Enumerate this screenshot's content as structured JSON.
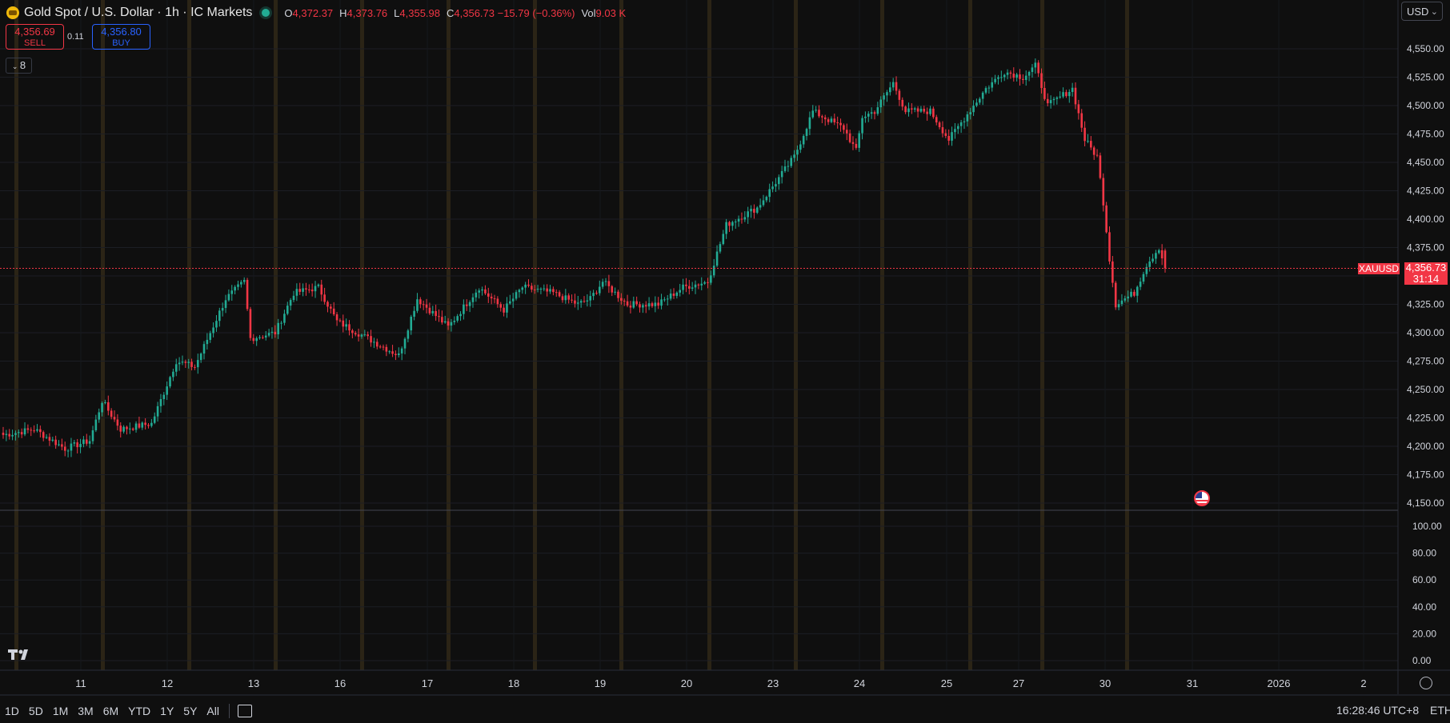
{
  "header": {
    "title": "Gold Spot / U.S. Dollar · 1h · IC Markets",
    "ohlc": [
      {
        "key": "O",
        "value": "4,372.37"
      },
      {
        "key": "H",
        "value": "4,373.76"
      },
      {
        "key": "L",
        "value": "4,355.98"
      },
      {
        "key": "C",
        "value": "4,356.73 −15.79 (−0.36%)"
      },
      {
        "key": "Vol",
        "value": "9.03 K"
      }
    ]
  },
  "trade": {
    "sell_price": "4,356.69",
    "sell_label": "SELL",
    "spread": "0.11",
    "buy_price": "4,356.80",
    "buy_label": "BUY"
  },
  "indicators": {
    "toggle_label": "8"
  },
  "currency": {
    "selected": "USD"
  },
  "price_tag": {
    "symbol": "XAUUSD",
    "price": "4,356.73",
    "countdown": "31:14"
  },
  "footer": {
    "timeframes": [
      "1D",
      "5D",
      "1M",
      "3M",
      "6M",
      "YTD",
      "1Y",
      "5Y",
      "All"
    ],
    "clock": "16:28:46 UTC+8",
    "session": "ETH"
  },
  "colors": {
    "up": "#22ab94",
    "down": "#f23645",
    "background": "#0f0f0f",
    "session": "#2b2416"
  },
  "chart_data": {
    "type": "candlestick",
    "interval": "1h",
    "ylim": [
      4140,
      4565
    ],
    "price_ticks": [
      "4,150.00",
      "4,175.00",
      "4,200.00",
      "4,225.00",
      "4,250.00",
      "4,275.00",
      "4,300.00",
      "4,325.00",
      "4,350.00",
      "4,375.00",
      "4,400.00",
      "4,425.00",
      "4,450.00",
      "4,475.00",
      "4,500.00",
      "4,525.00",
      "4,550.00"
    ],
    "x_ticks": [
      "11",
      "12",
      "13",
      "16",
      "17",
      "18",
      "19",
      "20",
      "23",
      "24",
      "25",
      "27",
      "30",
      "31",
      "2026",
      "2"
    ],
    "last_price": 4356.73,
    "price_waypoints": [
      [
        0,
        4210
      ],
      [
        10,
        4215
      ],
      [
        20,
        4198
      ],
      [
        28,
        4205
      ],
      [
        32,
        4240
      ],
      [
        38,
        4215
      ],
      [
        48,
        4220
      ],
      [
        56,
        4275
      ],
      [
        62,
        4270
      ],
      [
        72,
        4330
      ],
      [
        78,
        4345
      ],
      [
        80,
        4295
      ],
      [
        88,
        4300
      ],
      [
        94,
        4335
      ],
      [
        102,
        4340
      ],
      [
        108,
        4310
      ],
      [
        118,
        4295
      ],
      [
        128,
        4280
      ],
      [
        134,
        4330
      ],
      [
        144,
        4305
      ],
      [
        154,
        4340
      ],
      [
        162,
        4320
      ],
      [
        168,
        4340
      ],
      [
        178,
        4335
      ],
      [
        186,
        4325
      ],
      [
        190,
        4330
      ],
      [
        194,
        4345
      ],
      [
        202,
        4325
      ],
      [
        212,
        4325
      ],
      [
        220,
        4340
      ],
      [
        228,
        4345
      ],
      [
        234,
        4395
      ],
      [
        244,
        4410
      ],
      [
        252,
        4440
      ],
      [
        256,
        4455
      ],
      [
        262,
        4495
      ],
      [
        272,
        4480
      ],
      [
        276,
        4460
      ],
      [
        278,
        4490
      ],
      [
        282,
        4495
      ],
      [
        288,
        4520
      ],
      [
        292,
        4495
      ],
      [
        300,
        4495
      ],
      [
        306,
        4470
      ],
      [
        310,
        4485
      ],
      [
        314,
        4500
      ],
      [
        318,
        4515
      ],
      [
        324,
        4530
      ],
      [
        330,
        4525
      ],
      [
        334,
        4535
      ],
      [
        338,
        4500
      ],
      [
        346,
        4515
      ],
      [
        350,
        4470
      ],
      [
        354,
        4455
      ],
      [
        356,
        4415
      ],
      [
        358,
        4365
      ],
      [
        360,
        4325
      ],
      [
        366,
        4335
      ],
      [
        370,
        4360
      ],
      [
        374,
        4375
      ],
      [
        376,
        4357
      ]
    ],
    "oscillator": {
      "ylim": [
        0,
        110
      ],
      "ticks": [
        "100.00",
        "80.00",
        "60.00",
        "40.00",
        "20.00",
        "0.00"
      ]
    }
  }
}
